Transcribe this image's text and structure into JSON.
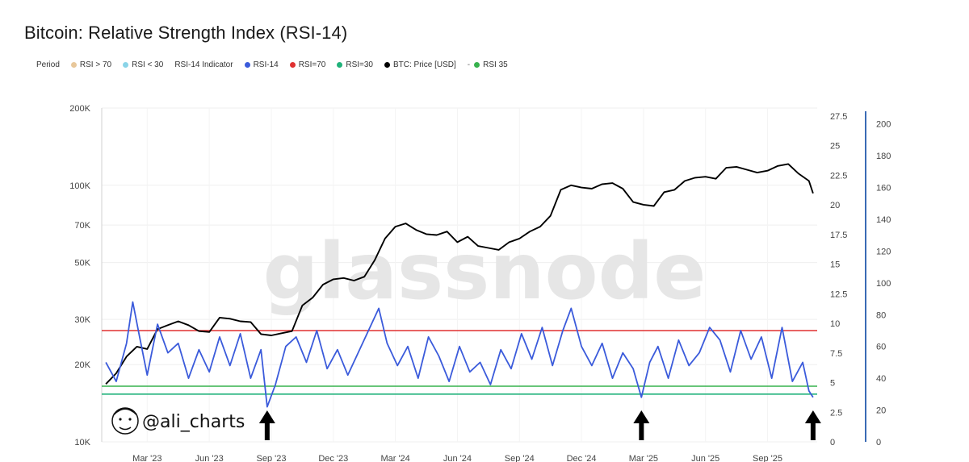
{
  "chart_data": {
    "type": "line",
    "title": "Bitcoin: Relative Strength Index (RSI-14)",
    "legend": [
      {
        "label": "Period",
        "marker": "none"
      },
      {
        "label": "RSI > 70",
        "marker": "dot",
        "color": "#e8c79a"
      },
      {
        "label": "RSI < 30",
        "marker": "dot",
        "color": "#8ad4e8"
      },
      {
        "label": "RSI-14 Indicator",
        "marker": "none"
      },
      {
        "label": "RSI-14",
        "marker": "dot",
        "color": "#3b5bdb"
      },
      {
        "label": "RSI=70",
        "marker": "dot",
        "color": "#e03131"
      },
      {
        "label": "RSI=30",
        "marker": "dot",
        "color": "#20b27a"
      },
      {
        "label": "BTC: Price [USD]",
        "marker": "dot",
        "color": "#000000"
      },
      {
        "label": "RSI 35",
        "marker": "dash-dot",
        "color": "#37b24d"
      }
    ],
    "x_ticks": [
      "Mar '23",
      "Jun '23",
      "Sep '23",
      "Dec '23",
      "Mar '24",
      "Jun '24",
      "Sep '24",
      "Dec '24",
      "Mar '25",
      "Jun '25",
      "Sep '25"
    ],
    "x_tick_months": [
      2,
      5,
      8,
      11,
      14,
      17,
      20,
      23,
      26,
      29,
      32
    ],
    "x_range_months": [
      -0.2,
      34.4
    ],
    "y_left": {
      "ticks": [
        10000,
        20000,
        30000,
        50000,
        70000,
        100000,
        200000
      ],
      "labels": [
        "10K",
        "20K",
        "30K",
        "50K",
        "70K",
        "100K",
        "200K"
      ],
      "scale": "log",
      "range": [
        10000,
        200000
      ]
    },
    "y_mid": {
      "ticks": [
        0,
        2.5,
        5,
        7.5,
        10,
        12.5,
        15,
        17.5,
        20,
        22.5,
        25,
        27.5
      ],
      "labels": [
        "0",
        "2.5",
        "5",
        "7.5",
        "10",
        "12.5",
        "15",
        "17.5",
        "20",
        "22.5",
        "25",
        "27.5"
      ],
      "range": [
        0,
        27.5
      ]
    },
    "y_right": {
      "ticks": [
        0,
        20,
        40,
        60,
        80,
        100,
        120,
        140,
        160,
        180,
        200
      ],
      "labels": [
        "0",
        "20",
        "40",
        "60",
        "80",
        "100",
        "120",
        "140",
        "160",
        "180",
        "200"
      ],
      "range": [
        0,
        210
      ]
    },
    "reference_lines": [
      {
        "name": "RSI=70",
        "value": 70,
        "color": "#e03131"
      },
      {
        "name": "RSI 35",
        "value": 35,
        "color": "#37b24d"
      },
      {
        "name": "RSI=30",
        "value": 30,
        "color": "#20b27a"
      }
    ],
    "series": [
      {
        "name": "BTC: Price [USD]",
        "color": "#000000",
        "axis": "left",
        "x": [
          0,
          0.5,
          1,
          1.5,
          2,
          2.5,
          3,
          3.5,
          4,
          4.5,
          5,
          5.5,
          6,
          6.5,
          7,
          7.5,
          8,
          8.5,
          9,
          9.5,
          10,
          10.5,
          11,
          11.5,
          12,
          12.5,
          13,
          13.5,
          14,
          14.5,
          15,
          15.5,
          16,
          16.5,
          17,
          17.5,
          18,
          18.5,
          19,
          19.5,
          20,
          20.5,
          21,
          21.5,
          22,
          22.5,
          23,
          23.5,
          24,
          24.5,
          25,
          25.5,
          26,
          26.5,
          27,
          27.5,
          28,
          28.5,
          29,
          29.5,
          30,
          30.5,
          31,
          31.5,
          32,
          32.5,
          33,
          33.5,
          34,
          34.2
        ],
        "values": [
          16800,
          18500,
          21500,
          23500,
          23000,
          27500,
          28500,
          29500,
          28500,
          27000,
          26800,
          30500,
          30200,
          29500,
          29300,
          26300,
          26000,
          26500,
          27000,
          34000,
          36500,
          41000,
          43000,
          43500,
          42500,
          44000,
          51000,
          62000,
          69000,
          71000,
          67000,
          64500,
          64000,
          66000,
          60000,
          63000,
          58000,
          57000,
          56000,
          60000,
          62000,
          66000,
          69000,
          76000,
          96000,
          100000,
          98000,
          97000,
          101000,
          102000,
          97000,
          86000,
          84000,
          83000,
          94000,
          96000,
          104000,
          107000,
          108000,
          106000,
          117000,
          118000,
          115000,
          112000,
          114000,
          119000,
          121000,
          111000,
          104000,
          93000
        ]
      },
      {
        "name": "RSI-14",
        "color": "#3b5bdb",
        "axis": "right",
        "x": [
          0,
          0.5,
          1,
          1.3,
          1.6,
          2,
          2.5,
          3,
          3.5,
          4,
          4.5,
          5,
          5.5,
          6,
          6.5,
          7,
          7.5,
          7.8,
          8.2,
          8.7,
          9.2,
          9.7,
          10.2,
          10.7,
          11.2,
          11.7,
          12.2,
          12.7,
          13.2,
          13.6,
          14.1,
          14.6,
          15.1,
          15.6,
          16.1,
          16.6,
          17.1,
          17.6,
          18.1,
          18.6,
          19.1,
          19.6,
          20.1,
          20.6,
          21.1,
          21.6,
          22.1,
          22.5,
          23,
          23.5,
          24,
          24.5,
          25,
          25.5,
          25.9,
          26.3,
          26.7,
          27.2,
          27.7,
          28.2,
          28.7,
          29.2,
          29.7,
          30.2,
          30.7,
          31.2,
          31.7,
          32.2,
          32.7,
          33.2,
          33.7,
          34,
          34.2
        ],
        "values": [
          50,
          38,
          62,
          88,
          68,
          42,
          74,
          56,
          62,
          40,
          58,
          44,
          66,
          48,
          68,
          40,
          58,
          22,
          36,
          60,
          66,
          50,
          70,
          46,
          58,
          42,
          56,
          70,
          84,
          62,
          48,
          60,
          40,
          66,
          54,
          38,
          60,
          44,
          50,
          36,
          58,
          46,
          68,
          52,
          72,
          48,
          70,
          84,
          60,
          48,
          62,
          40,
          56,
          46,
          28,
          50,
          60,
          40,
          64,
          48,
          56,
          72,
          64,
          44,
          70,
          52,
          66,
          40,
          72,
          38,
          50,
          32,
          28
        ]
      }
    ],
    "annotations": [
      {
        "type": "arrow",
        "x": 7.8,
        "direction": "up"
      },
      {
        "type": "arrow",
        "x": 25.9,
        "direction": "up"
      },
      {
        "type": "arrow",
        "x": 34.2,
        "direction": "up"
      }
    ]
  },
  "watermark": "glassnode",
  "author_tag": "@ali_charts"
}
